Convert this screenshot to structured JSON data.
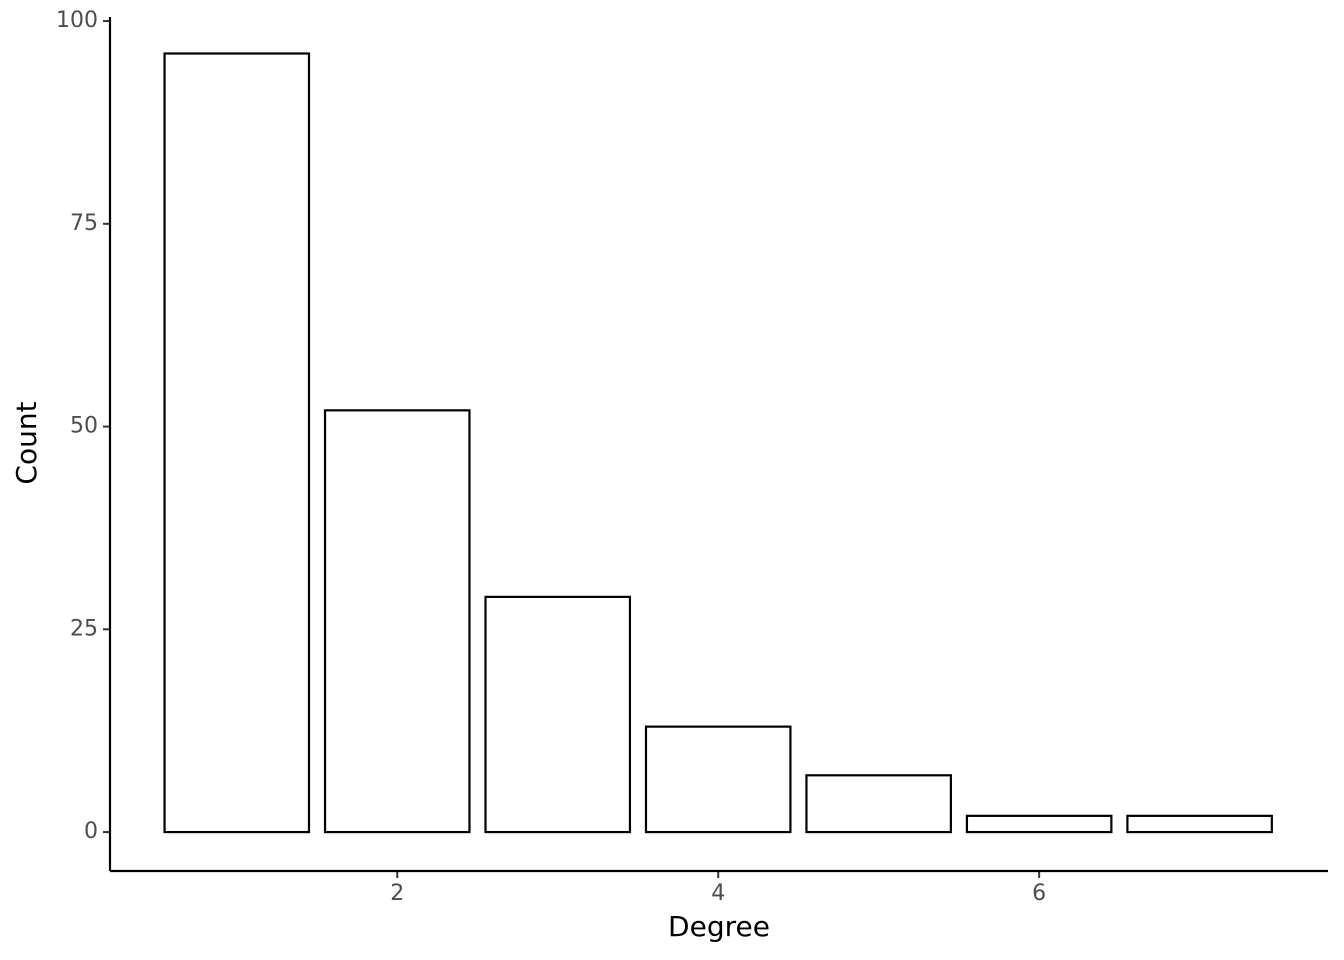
{
  "chart_data": {
    "type": "bar",
    "x_label": "Degree",
    "y_label": "Count",
    "x": [
      1,
      2,
      3,
      4,
      5,
      6,
      7
    ],
    "values": [
      96,
      52,
      29,
      13,
      7,
      2,
      2
    ],
    "fill": "#ffffff",
    "edgecolor": "#000000",
    "xlim": [
      0.21,
      7.8
    ],
    "ylim": [
      -4.8,
      100.5
    ],
    "xticks": [
      2,
      4,
      6
    ],
    "yticks": [
      0,
      25,
      50,
      75,
      100
    ],
    "grid": false
  }
}
